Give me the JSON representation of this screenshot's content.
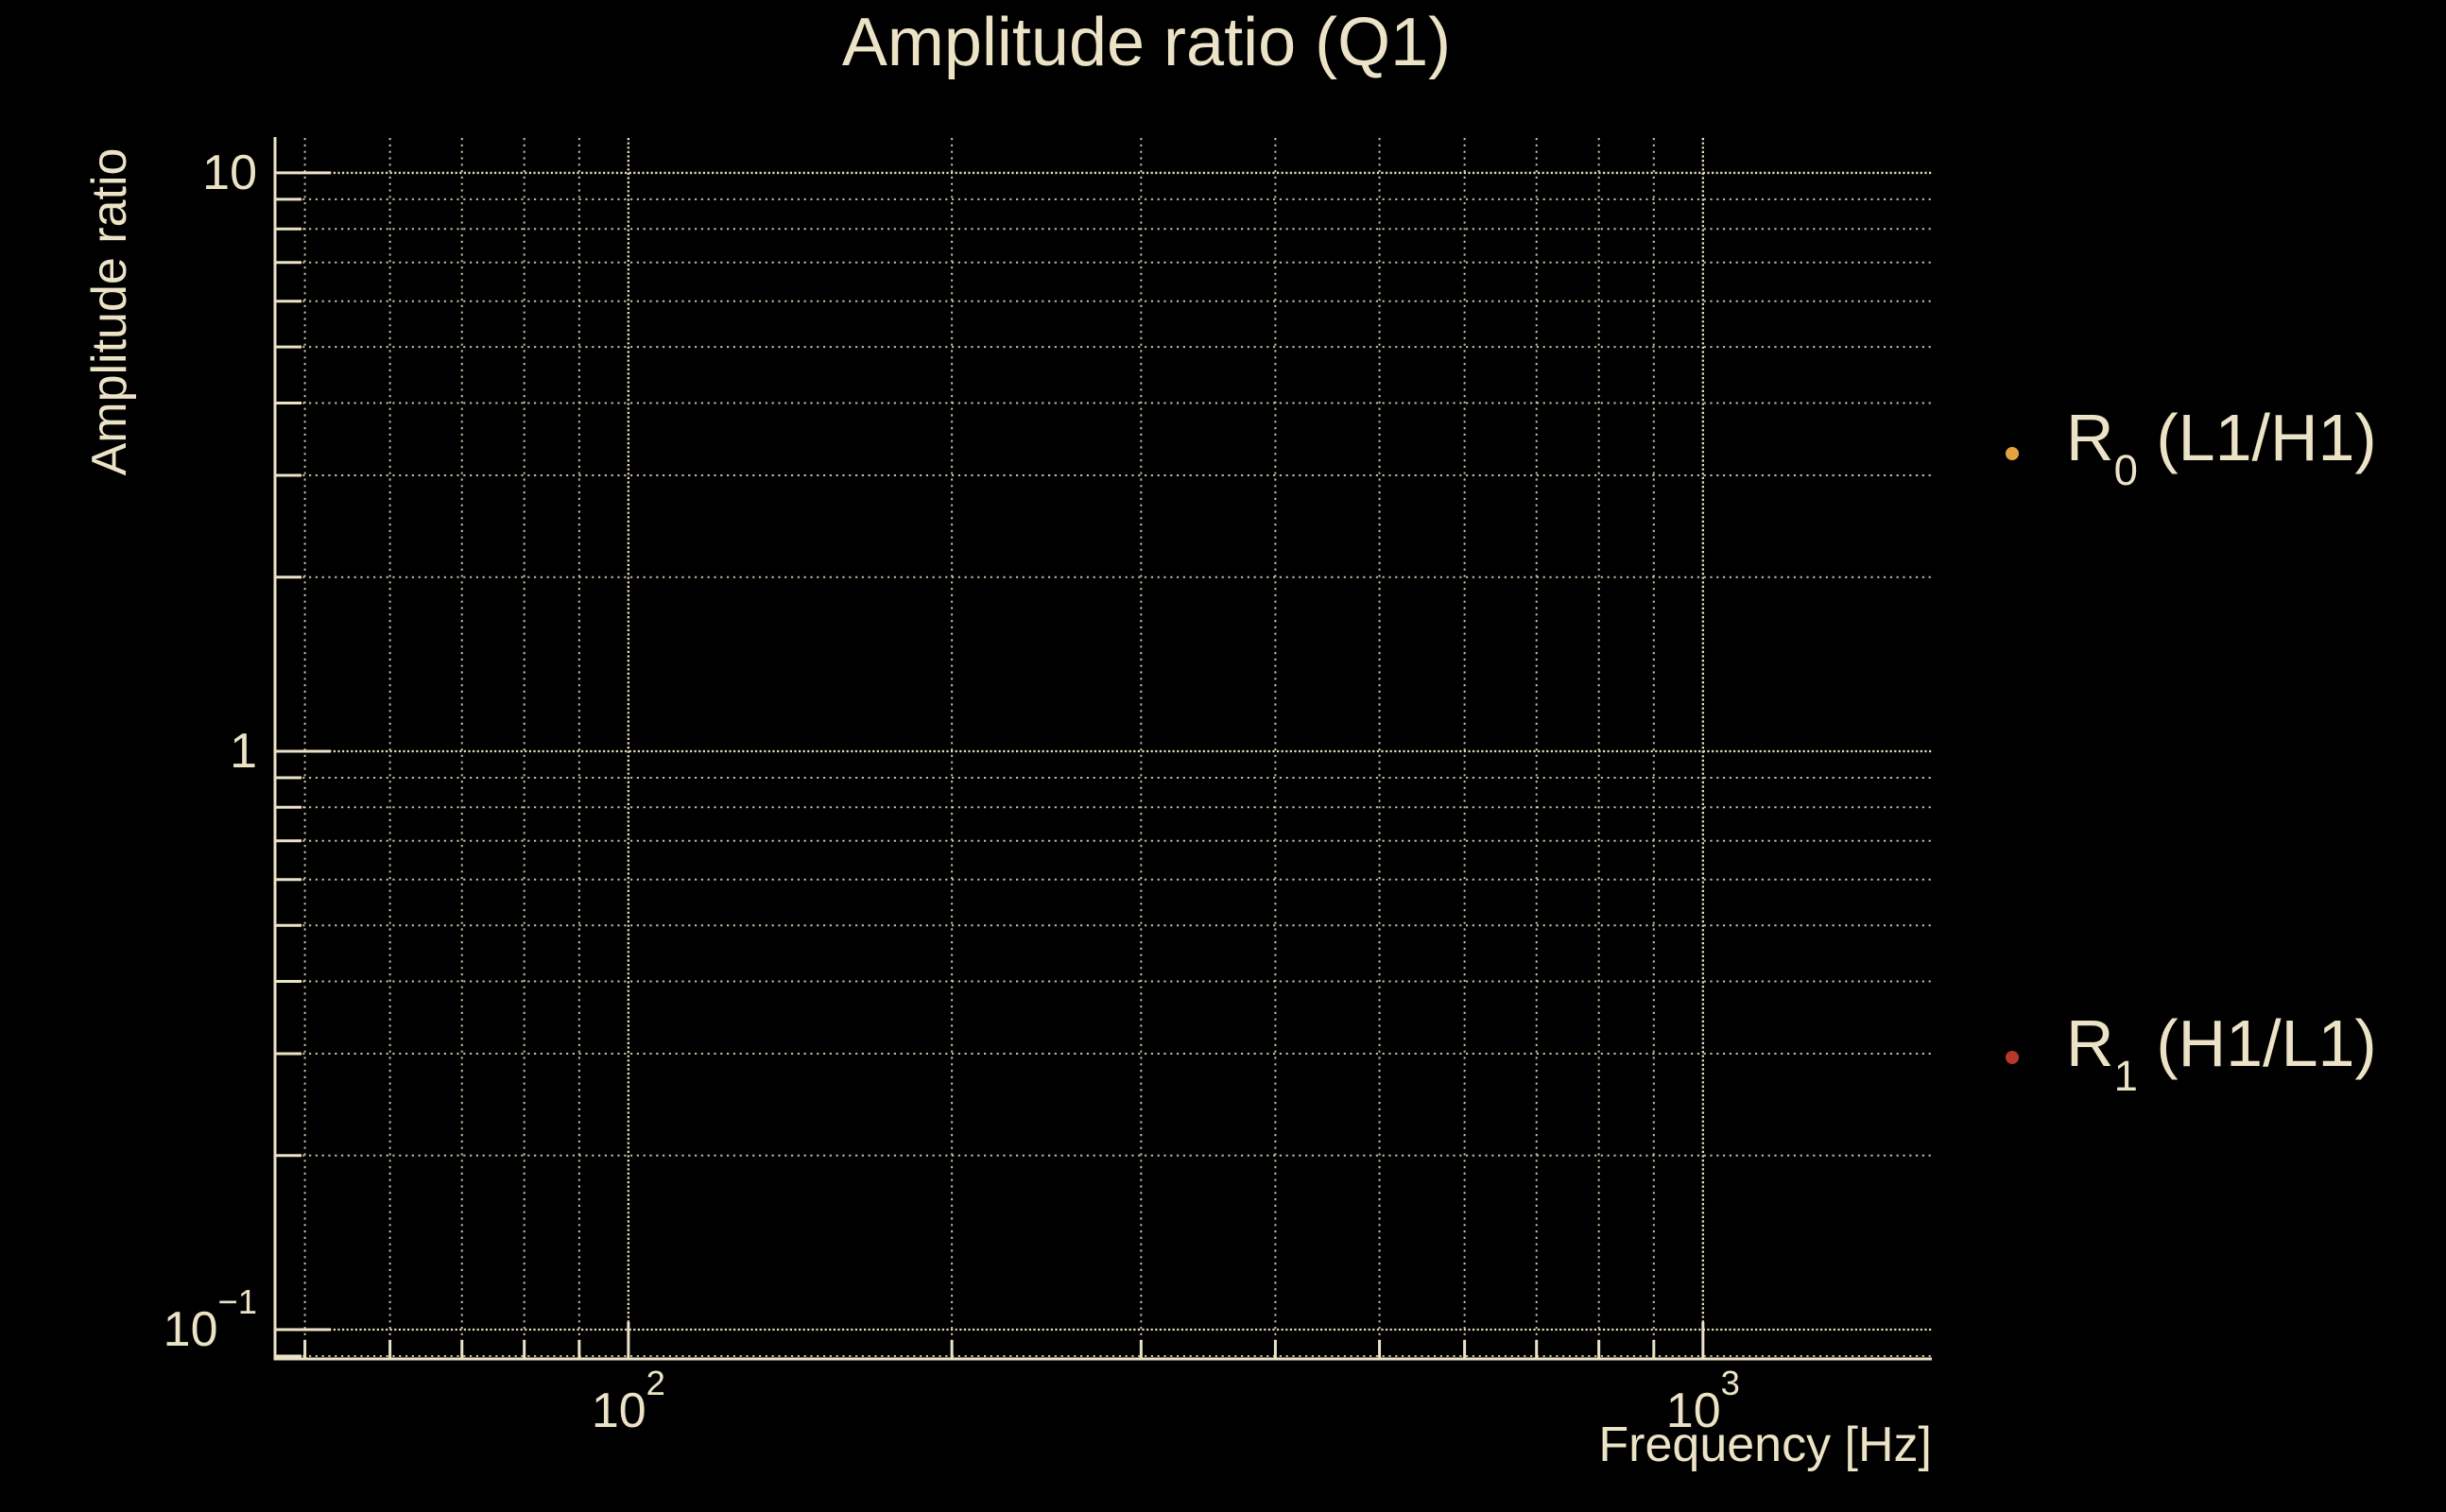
{
  "figure": {
    "background_color": "#000000",
    "foreground_color": "#ece3c7",
    "grid_color": "#e7ddc0"
  },
  "chart_data": {
    "type": "scatter",
    "title": "Amplitude ratio (Q1)",
    "xlabel": "Frequency [Hz]",
    "ylabel": "Amplitude ratio",
    "xscale": "log",
    "yscale": "log",
    "xlim": [
      46.9,
      1633
    ],
    "ylim": [
      0.089,
      11.49
    ],
    "grid": "major and minor, dotted",
    "x_major_ticks": [
      100,
      1000
    ],
    "x_tick_labels": [
      {
        "base": "10",
        "sup": "2"
      },
      {
        "base": "10",
        "sup": "3"
      }
    ],
    "y_major_ticks": [
      0.1,
      1,
      10
    ],
    "y_tick_labels": [
      {
        "base": "10",
        "sup": "−1"
      },
      {
        "base": "1",
        "sup": ""
      },
      {
        "base": "10",
        "sup": ""
      }
    ],
    "series": [
      {
        "label_base": "R",
        "label_sub": "0",
        "label_rest": " (L1/H1)",
        "marker": "dot",
        "marker_color": "#e2a43e",
        "points": []
      },
      {
        "label_base": "R",
        "label_sub": "1",
        "label_rest": " (H1/L1)",
        "marker": "dot",
        "marker_color": "#b5392b",
        "points": []
      }
    ],
    "legend": {
      "location": "right of axes"
    }
  }
}
